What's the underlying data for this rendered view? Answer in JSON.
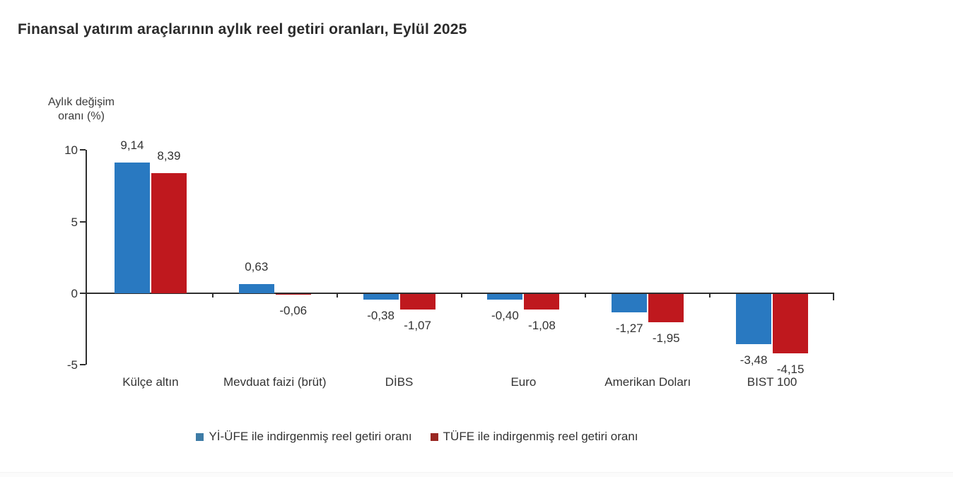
{
  "title": "Finansal yatırım araçlarının aylık reel getiri oranları, Eylül 2025",
  "chart_data": {
    "type": "bar",
    "title": "Finansal yatırım araçlarının aylık reel getiri oranları, Eylül 2025",
    "ylabel": "Aylık değişim\noranı (%)",
    "xlabel": "",
    "categories": [
      "Külçe altın",
      "Mevduat faizi (brüt)",
      "DİBS",
      "Euro",
      "Amerikan Doları",
      "BIST 100"
    ],
    "series": [
      {
        "name": "Yİ-ÜFE ile indirgenmiş reel getiri oranı",
        "color": "#2979c1",
        "legend_color": "#3e7ca6",
        "values": [
          9.14,
          0.63,
          -0.38,
          -0.4,
          -1.27,
          -3.48
        ],
        "labels": [
          "9,14",
          "0,63",
          "-0,38",
          "-0,40",
          "-1,27",
          "-3,48"
        ]
      },
      {
        "name": "TÜFE ile indirgenmiş reel getiri oranı",
        "color": "#bf181e",
        "legend_color": "#9a2823",
        "values": [
          8.39,
          -0.06,
          -1.07,
          -1.08,
          -1.95,
          -4.15
        ],
        "labels": [
          "8,39",
          "-0,06",
          "-1,07",
          "-1,08",
          "-1,95",
          "-4,15"
        ]
      }
    ],
    "y_ticks": [
      10,
      5,
      0,
      -5
    ],
    "y_tick_labels": [
      "10",
      "5",
      "0",
      "-5"
    ],
    "ylim": [
      -5,
      10
    ],
    "grid": false,
    "legend_position": "bottom"
  }
}
